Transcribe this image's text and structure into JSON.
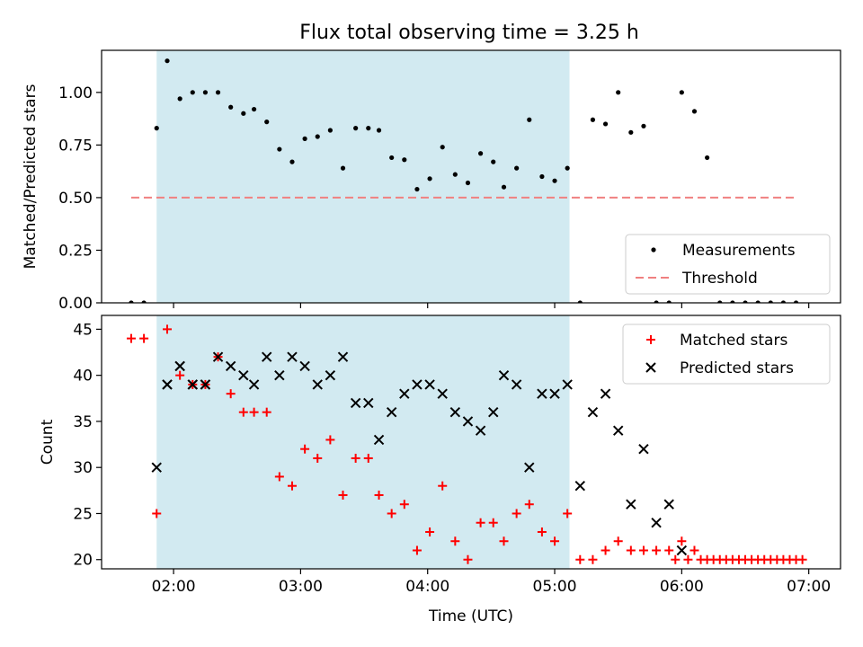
{
  "title": "Flux total observing time = 3.25 h",
  "colors": {
    "shade": "#add8e6",
    "measurement": "#000000",
    "threshold": "#f08080",
    "matched": "#ff0000",
    "predicted": "#000000"
  },
  "chart_data": [
    {
      "type": "scatter",
      "name": "ratio-panel",
      "ylabel": "Matched/Predicted stars",
      "ylim": [
        0,
        1.2
      ],
      "yticks": [
        0,
        0.25,
        0.5,
        0.75,
        1.0
      ],
      "ytick_labels": [
        "0.00",
        "0.25",
        "0.50",
        "0.75",
        "1.00"
      ],
      "xlim": [
        "01:26",
        "07:15"
      ],
      "shaded_region": [
        "01:52",
        "05:07"
      ],
      "threshold": {
        "value": 0.5,
        "x": [
          "01:40",
          "06:55"
        ]
      },
      "legend": {
        "position": "bottom-right",
        "entries": [
          "Measurements",
          "Threshold"
        ]
      },
      "series": [
        {
          "name": "Measurements",
          "x": [
            "01:40",
            "01:46",
            "01:52",
            "01:57",
            "02:03",
            "02:09",
            "02:15",
            "02:21",
            "02:27",
            "02:33",
            "02:38",
            "02:44",
            "02:50",
            "02:56",
            "03:02",
            "03:08",
            "03:14",
            "03:20",
            "03:26",
            "03:32",
            "03:37",
            "03:43",
            "03:49",
            "03:55",
            "04:01",
            "04:07",
            "04:13",
            "04:19",
            "04:25",
            "04:31",
            "04:36",
            "04:42",
            "04:48",
            "04:54",
            "05:00",
            "05:06",
            "05:12",
            "05:18",
            "05:24",
            "05:30",
            "05:36",
            "05:42",
            "05:48",
            "05:54",
            "06:00",
            "06:06",
            "06:12",
            "06:18",
            "06:24",
            "06:30",
            "06:36",
            "06:42",
            "06:48",
            "06:54"
          ],
          "y": [
            0.0,
            0.0,
            0.83,
            1.15,
            0.97,
            1.0,
            1.0,
            1.0,
            0.93,
            0.9,
            0.92,
            0.86,
            0.73,
            0.67,
            0.78,
            0.79,
            0.82,
            0.64,
            0.83,
            0.83,
            0.82,
            0.69,
            0.68,
            0.54,
            0.59,
            0.74,
            0.61,
            0.57,
            0.71,
            0.67,
            0.55,
            0.64,
            0.87,
            0.6,
            0.58,
            0.64,
            0.0,
            0.87,
            0.85,
            1.0,
            0.81,
            0.84,
            0.0,
            0.0,
            1.0,
            0.91,
            0.69,
            0.0,
            0.0,
            0.0,
            0.0,
            0.0,
            0.0,
            0.0
          ],
          "note_x": "second half of series",
          "x_full": [
            "01:40",
            "01:46",
            "01:52",
            "01:57",
            "02:03",
            "02:09",
            "02:15",
            "02:21",
            "02:27",
            "02:33",
            "02:38",
            "02:44",
            "02:50",
            "02:56",
            "03:02",
            "03:08",
            "03:14",
            "03:20",
            "03:26",
            "03:32",
            "03:37",
            "03:43",
            "03:49",
            "03:55",
            "04:01",
            "04:07",
            "04:13",
            "04:19",
            "04:25",
            "04:31",
            "04:36",
            "04:42",
            "04:48",
            "04:54",
            "05:00",
            "05:06",
            "05:12",
            "05:18",
            "05:24",
            "05:30",
            "05:36",
            "05:42",
            "05:48",
            "05:54",
            "06:00",
            "06:06",
            "06:12",
            "06:18",
            "06:24",
            "06:30",
            "06:36",
            "06:42",
            "06:48",
            "06:54"
          ]
        }
      ]
    },
    {
      "type": "scatter",
      "name": "count-panel",
      "xlabel": "Time (UTC)",
      "ylabel": "Count",
      "ylim": [
        19,
        46.5
      ],
      "yticks": [
        20,
        25,
        30,
        35,
        40,
        45
      ],
      "xlim": [
        "01:26",
        "07:15"
      ],
      "xticks": [
        "02:00",
        "03:00",
        "04:00",
        "05:00",
        "06:00",
        "07:00"
      ],
      "shaded_region": [
        "01:52",
        "05:07"
      ],
      "legend": {
        "position": "top-right",
        "entries": [
          "Matched stars",
          "Predicted stars"
        ]
      },
      "series": [
        {
          "name": "Matched stars",
          "x": [
            "01:40",
            "01:46",
            "01:52",
            "01:57",
            "02:03",
            "02:09",
            "02:15",
            "02:21",
            "02:27",
            "02:33",
            "02:38",
            "02:44",
            "02:50",
            "02:56",
            "03:02",
            "03:08",
            "03:14",
            "03:20",
            "03:26",
            "03:32",
            "03:37",
            "03:43",
            "03:49",
            "03:55",
            "04:01",
            "04:07",
            "04:13",
            "04:19",
            "04:25",
            "04:31",
            "04:36",
            "04:42",
            "04:48",
            "04:54",
            "05:00",
            "05:06",
            "05:12",
            "05:18",
            "05:24",
            "05:30",
            "05:36",
            "05:42",
            "05:48",
            "05:54",
            "06:00",
            "06:06",
            "06:12",
            "06:18",
            "06:24",
            "06:30",
            "06:36",
            "06:42",
            "06:48",
            "06:54",
            "05:57",
            "06:03",
            "06:09",
            "06:15",
            "06:21",
            "06:27",
            "06:33",
            "06:39",
            "06:45",
            "06:51",
            "06:57"
          ],
          "y": [
            44,
            44,
            25,
            45,
            40,
            39,
            39,
            42,
            38,
            36,
            36,
            36,
            29,
            28,
            32,
            31,
            33,
            27,
            31,
            31,
            27,
            25,
            26,
            21,
            23,
            28,
            22,
            20,
            24,
            24,
            22,
            25,
            26,
            23,
            22,
            25,
            20,
            20,
            21,
            22,
            21,
            21,
            21,
            21,
            22,
            21,
            20,
            20,
            20,
            20,
            20,
            20,
            20,
            20,
            20,
            20,
            20,
            20,
            20,
            20,
            20,
            20,
            20,
            20,
            20
          ]
        },
        {
          "name": "Predicted stars",
          "x": [
            "01:57",
            "02:03",
            "02:09",
            "02:15",
            "02:21",
            "02:27",
            "02:33",
            "02:38",
            "02:44",
            "02:50",
            "02:56",
            "03:02",
            "03:08",
            "03:14",
            "03:20",
            "03:26",
            "03:32",
            "03:37",
            "03:43",
            "03:49",
            "03:55",
            "04:01",
            "04:07",
            "04:13",
            "04:19",
            "04:25",
            "04:31",
            "04:36",
            "04:42",
            "04:48",
            "04:54",
            "05:00",
            "05:06",
            "05:12",
            "05:18",
            "05:24",
            "05:30",
            "05:36",
            "05:42",
            "05:48",
            "05:54",
            "06:00",
            "01:52",
            "01:57",
            "02:03",
            "02:09",
            "02:15"
          ],
          "y": [
            39,
            41,
            39,
            39,
            42,
            41,
            40,
            39,
            42,
            40,
            42,
            41,
            39,
            40,
            42,
            37,
            37,
            33,
            36,
            38,
            39,
            39,
            38,
            36,
            35,
            34,
            36,
            40,
            39,
            30,
            38,
            38,
            39,
            28,
            36,
            38,
            34,
            26,
            32,
            24,
            26,
            21,
            30,
            39,
            41,
            39,
            39
          ]
        }
      ]
    }
  ]
}
